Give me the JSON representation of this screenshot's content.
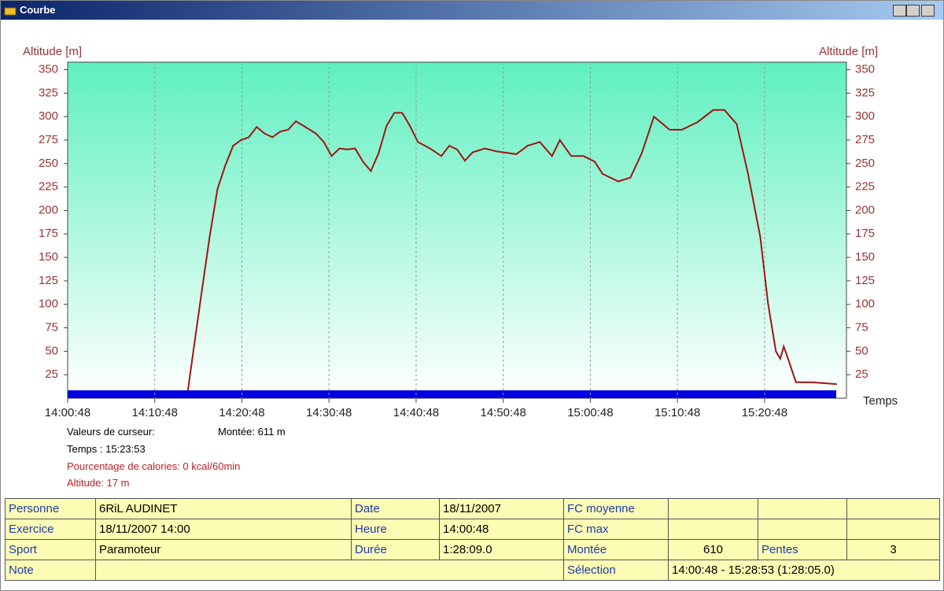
{
  "window": {
    "title": "Courbe"
  },
  "chart_data": {
    "type": "line",
    "y_label": "Altitude [m]",
    "y2_label": "Altitude [m]",
    "x_label": "Temps",
    "color": "#a01414",
    "grid": true,
    "x": [
      13.8,
      14.5,
      15.4,
      16.3,
      17.2,
      18.1,
      19.0,
      19.9,
      20.8,
      21.7,
      22.6,
      23.5,
      24.4,
      25.3,
      26.2,
      27.1,
      28.5,
      29.4,
      30.3,
      31.2,
      32.1,
      33.0,
      33.9,
      34.8,
      35.7,
      36.6,
      37.5,
      38.4,
      39.3,
      40.2,
      41.6,
      42.9,
      43.8,
      44.7,
      45.6,
      46.5,
      47.9,
      49.2,
      51.5,
      52.8,
      54.2,
      55.6,
      56.5,
      57.8,
      59.2,
      60.5,
      61.4,
      63.2,
      64.6,
      65.9,
      67.3,
      69.1,
      70.5,
      72.3,
      74.1,
      75.4,
      76.8,
      78.1,
      79.5,
      80.4,
      81.3,
      81.8,
      82.2,
      82.7,
      83.6,
      85.4,
      88.3
    ],
    "values": [
      8,
      55,
      114,
      172,
      223,
      248,
      269,
      275,
      278,
      289,
      282,
      278,
      284,
      286,
      295,
      290,
      282,
      273,
      258,
      266,
      265,
      266,
      252,
      242,
      261,
      290,
      304,
      304,
      290,
      273,
      266,
      258,
      269,
      265,
      253,
      262,
      266,
      263,
      260,
      269,
      273,
      258,
      275,
      258,
      258,
      252,
      239,
      231,
      235,
      261,
      300,
      286,
      286,
      294,
      307,
      307,
      292,
      239,
      172,
      101,
      50,
      42,
      55,
      42,
      17,
      17,
      15
    ],
    "xlim": [
      0,
      89.4
    ],
    "xticks": [
      {
        "value": 0,
        "label": "14:00:48"
      },
      {
        "value": 10,
        "label": "14:10:48"
      },
      {
        "value": 20,
        "label": "14:20:48"
      },
      {
        "value": 30,
        "label": "14:30:48"
      },
      {
        "value": 40,
        "label": "14:40:48"
      },
      {
        "value": 50,
        "label": "14:50:48"
      },
      {
        "value": 60,
        "label": "15:00:48"
      },
      {
        "value": 70,
        "label": "15:10:48"
      },
      {
        "value": 80,
        "label": "15:20:48"
      }
    ],
    "ylim": [
      0,
      358
    ],
    "yticks": [
      25,
      50,
      75,
      100,
      125,
      150,
      175,
      200,
      225,
      250,
      275,
      300,
      325,
      350
    ],
    "y2lim": [
      0,
      358
    ],
    "y2ticks": [
      25,
      50,
      75,
      100,
      125,
      150,
      175,
      200,
      225,
      250,
      275,
      300,
      325,
      350
    ]
  },
  "cursor_info": {
    "heading": "Valeurs de curseur:",
    "climb": "Montée: 611 m",
    "time": "Temps : 15:23:53",
    "calories": "Pourcentage de calories: 0 kcal/60min",
    "altitude": "Altitude: 17 m"
  },
  "info_table": {
    "rows": [
      [
        "Personne",
        "6RiL AUDINET",
        "Date",
        "18/11/2007",
        "FC moyenne"
      ],
      [
        "Exercice",
        "18/11/2007 14:00",
        "Heure",
        "14:00:48",
        "FC max"
      ],
      [
        "Sport",
        "Paramoteur",
        "Durée",
        "1:28:09.0",
        "Montée",
        "610",
        "Pentes",
        "3"
      ],
      [
        "Note",
        "Sélection",
        "14:00:48 - 15:28:53 (1:28:05.0)"
      ]
    ]
  }
}
